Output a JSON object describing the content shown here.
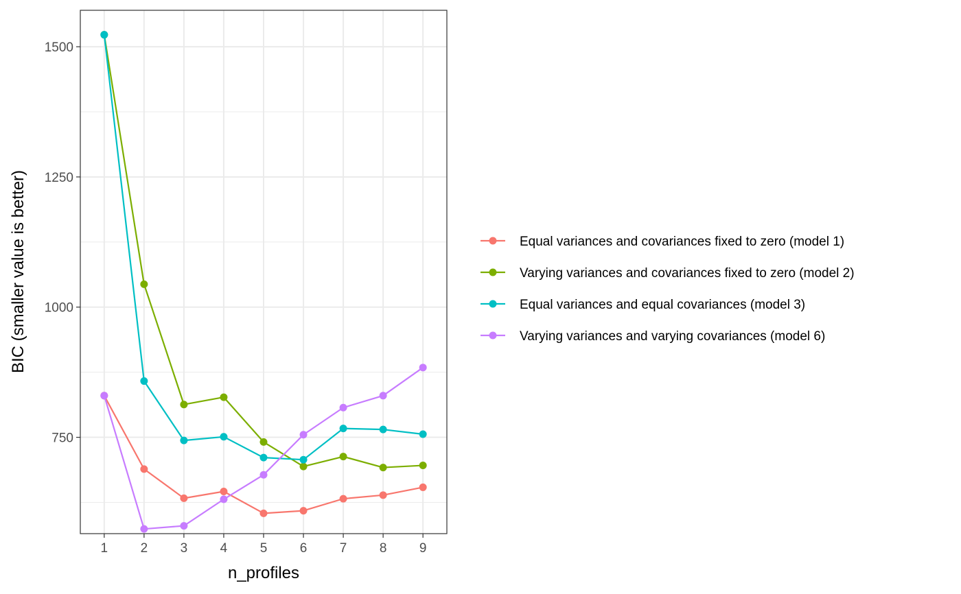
{
  "chart_data": {
    "type": "line",
    "title": "",
    "xlabel": "n_profiles",
    "ylabel": "BIC (smaller value is better)",
    "x": [
      1,
      2,
      3,
      4,
      5,
      6,
      7,
      8,
      9
    ],
    "xlim": [
      0.4,
      9.6
    ],
    "ylim": [
      565,
      1570
    ],
    "y_ticks": [
      750,
      1000,
      1250,
      1500
    ],
    "grid": true,
    "legend_position": "right",
    "series": [
      {
        "name": "Equal variances and covariances fixed to zero (model 1)",
        "color": "#F8766D",
        "values": [
          830,
          689,
          633,
          646,
          604,
          609,
          632,
          639,
          654
        ]
      },
      {
        "name": "Varying variances and covariances fixed to zero (model 2)",
        "color": "#7CAE00",
        "values": [
          1523,
          1044,
          813,
          827,
          741,
          694,
          713,
          692,
          696
        ]
      },
      {
        "name": "Equal variances and equal covariances (model 3)",
        "color": "#00BFC4",
        "values": [
          1523,
          858,
          744,
          751,
          711,
          707,
          767,
          765,
          756
        ]
      },
      {
        "name": "Varying variances and varying covariances (model 6)",
        "color": "#C77CFF",
        "values": [
          830,
          574,
          580,
          631,
          678,
          755,
          807,
          830,
          884
        ]
      }
    ]
  }
}
